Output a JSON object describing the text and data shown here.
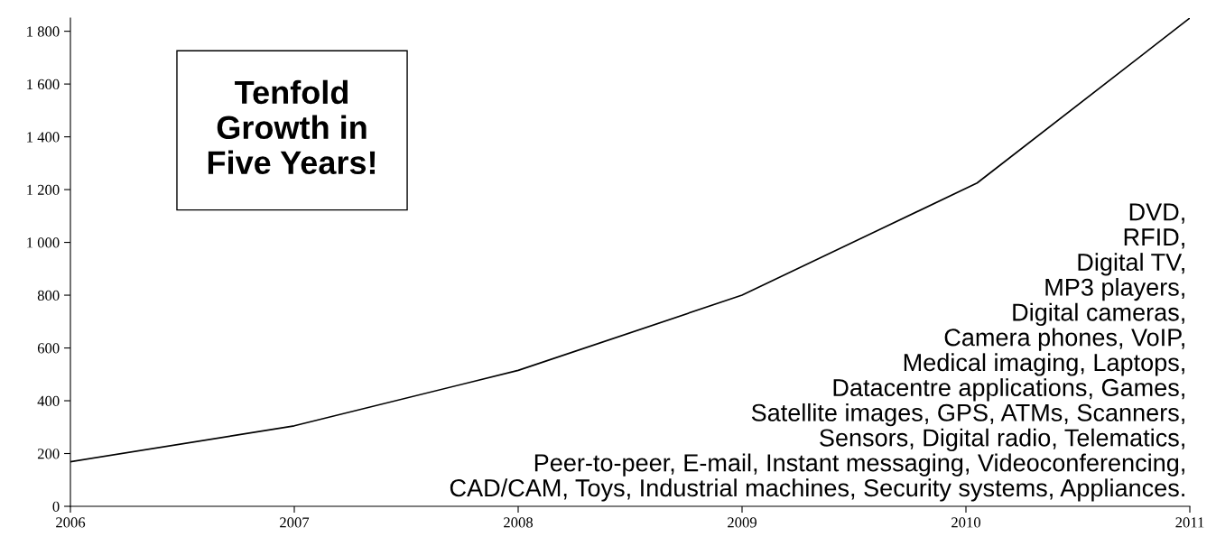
{
  "chart_data": {
    "type": "line",
    "x": [
      2006,
      2007,
      2008,
      2009,
      2010.05,
      2011
    ],
    "series": [
      {
        "color": "#000000",
        "values": [
          169,
          305,
          515,
          800,
          1225,
          1850
        ]
      }
    ],
    "xlim": [
      2006,
      2011
    ],
    "ylim": [
      0,
      1850
    ],
    "xticks": [
      2006,
      2007,
      2008,
      2009,
      2010,
      2011
    ],
    "yticks": [
      0,
      200,
      400,
      600,
      800,
      {
        "value": 1000,
        "label": "1 000"
      },
      {
        "value": 1200,
        "label": "1 200"
      },
      {
        "value": 1400,
        "label": "1 400"
      },
      {
        "value": 1600,
        "label": "1 600"
      },
      {
        "value": 1800,
        "label": "1 800"
      }
    ],
    "grid": false,
    "legend": false,
    "marker": "none",
    "line_style": "solid",
    "annotations": [
      "Tenfold\nGrowth in\nFive Years!",
      "DVD,\nRFID,\nDigital TV,\nMP3 players,\nDigital cameras,\nCamera phones, VoIP,\nMedical imaging, Laptops,\nDatacentre applications, Games,\nSatellite images, GPS, ATMs, Scanners,\nSensors, Digital radio, Telematics,\nPeer-to-peer, E-mail, Instant messaging, Videoconferencing,\nCAD/CAM, Toys, Industrial machines, Security systems, Appliances."
    ]
  }
}
